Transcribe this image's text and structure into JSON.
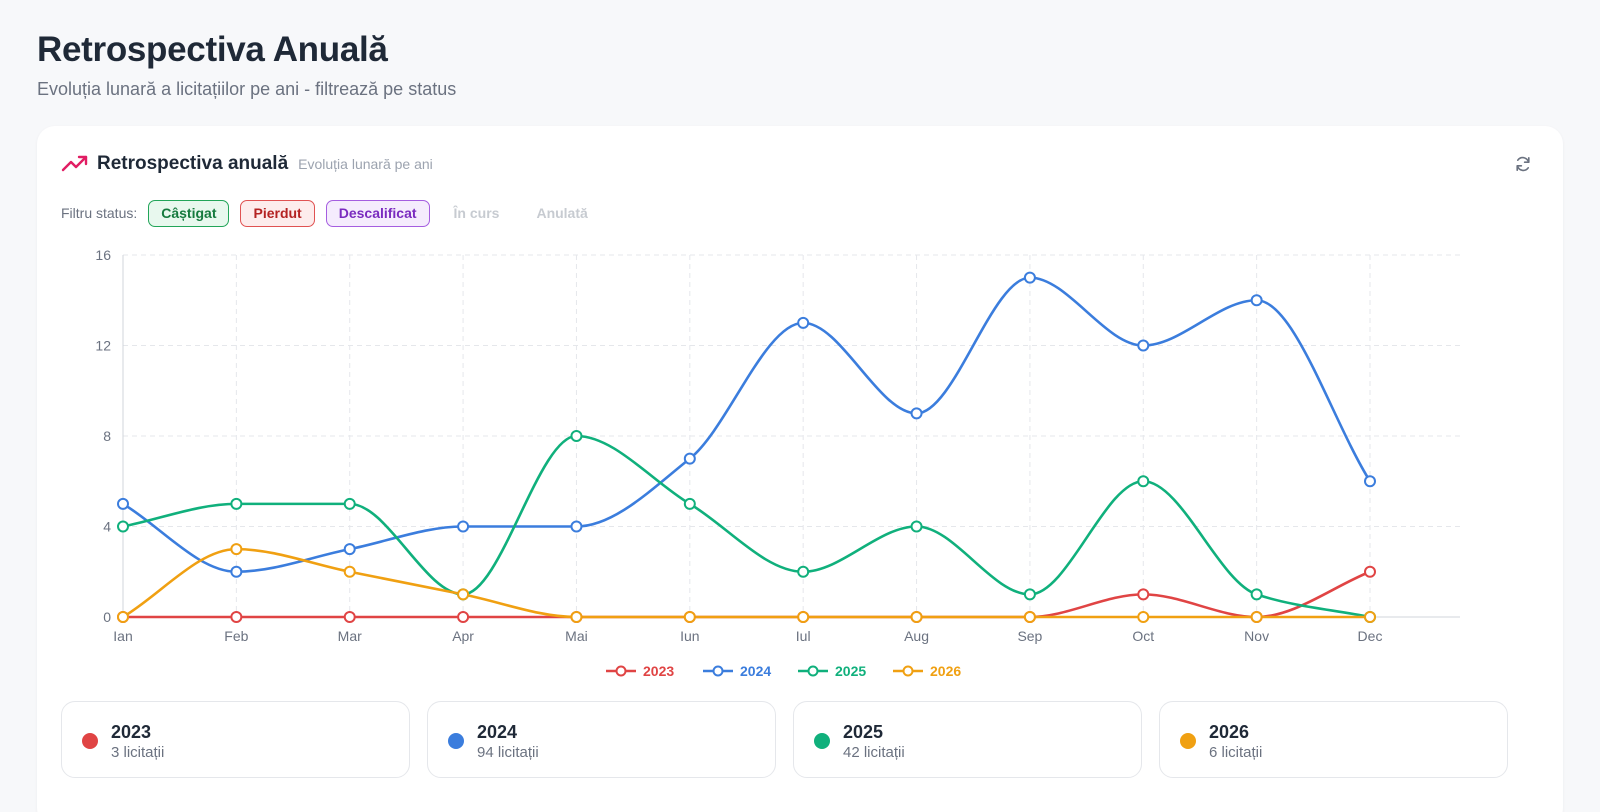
{
  "page": {
    "title": "Retrospectiva Anuală",
    "subtitle": "Evoluția lunară a licitațiilor pe ani - filtrează pe status"
  },
  "card": {
    "title": "Retrospectiva anuală",
    "subtitle": "Evoluția lunară pe ani",
    "trend_icon": "trending-up-icon",
    "refresh_icon": "refresh-icon",
    "accent": "#e11d63"
  },
  "filters": {
    "label": "Filtru status:",
    "chips": [
      {
        "label": "Câștigat",
        "active": true
      },
      {
        "label": "Pierdut",
        "active": true
      },
      {
        "label": "Descalificat",
        "active": true
      },
      {
        "label": "În curs",
        "active": false
      },
      {
        "label": "Anulată",
        "active": false
      }
    ]
  },
  "chart_data": {
    "type": "line",
    "x": [
      "Ian",
      "Feb",
      "Mar",
      "Apr",
      "Mai",
      "Iun",
      "Iul",
      "Aug",
      "Sep",
      "Oct",
      "Nov",
      "Dec"
    ],
    "ylim": [
      0,
      16
    ],
    "yticks": [
      0,
      4,
      8,
      12,
      16
    ],
    "grid": true,
    "legend": "bottom-center",
    "series": [
      {
        "name": "2023",
        "color": "#e04444",
        "values": [
          0,
          0,
          0,
          0,
          0,
          0,
          0,
          0,
          0,
          1,
          0,
          2
        ]
      },
      {
        "name": "2024",
        "color": "#3b7ddd",
        "values": [
          5,
          2,
          3,
          4,
          4,
          7,
          13,
          9,
          15,
          12,
          14,
          6
        ]
      },
      {
        "name": "2025",
        "color": "#10b07c",
        "values": [
          4,
          5,
          5,
          1,
          8,
          5,
          2,
          4,
          1,
          6,
          1,
          0
        ]
      },
      {
        "name": "2026",
        "color": "#f0a012",
        "values": [
          0,
          3,
          2,
          1,
          0,
          0,
          0,
          0,
          0,
          0,
          0,
          0
        ]
      }
    ]
  },
  "stats": [
    {
      "year": "2023",
      "count": "3 licitații",
      "color": "#e04444"
    },
    {
      "year": "2024",
      "count": "94 licitații",
      "color": "#3b7ddd"
    },
    {
      "year": "2025",
      "count": "42 licitații",
      "color": "#10b07c"
    },
    {
      "year": "2026",
      "count": "6 licitații",
      "color": "#f0a012"
    }
  ]
}
